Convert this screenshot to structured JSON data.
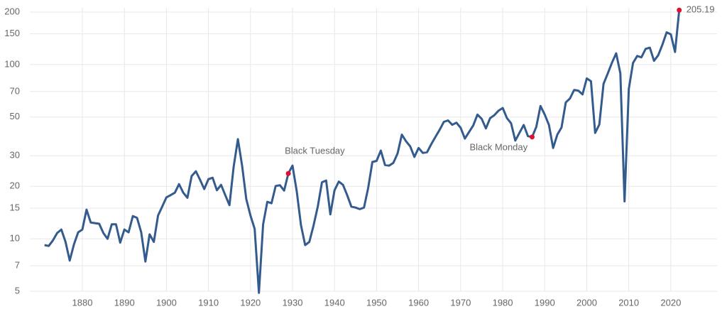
{
  "chart_data": {
    "type": "line",
    "log_scale": true,
    "grid": true,
    "color": "#345b8e",
    "marker_color": "#e0102f",
    "x": [
      1871,
      1872,
      1873,
      1874,
      1875,
      1876,
      1877,
      1878,
      1879,
      1880,
      1881,
      1882,
      1883,
      1884,
      1885,
      1886,
      1887,
      1888,
      1889,
      1890,
      1891,
      1892,
      1893,
      1894,
      1895,
      1896,
      1897,
      1898,
      1899,
      1900,
      1901,
      1902,
      1903,
      1904,
      1905,
      1906,
      1907,
      1908,
      1909,
      1910,
      1911,
      1912,
      1913,
      1914,
      1915,
      1916,
      1917,
      1918,
      1919,
      1920,
      1921,
      1922,
      1923,
      1924,
      1925,
      1926,
      1927,
      1928,
      1929,
      1930,
      1931,
      1932,
      1933,
      1934,
      1935,
      1936,
      1937,
      1938,
      1939,
      1940,
      1941,
      1942,
      1943,
      1944,
      1945,
      1946,
      1947,
      1948,
      1949,
      1950,
      1951,
      1952,
      1953,
      1954,
      1955,
      1956,
      1957,
      1958,
      1959,
      1960,
      1961,
      1962,
      1963,
      1964,
      1965,
      1966,
      1967,
      1968,
      1969,
      1970,
      1971,
      1972,
      1973,
      1974,
      1975,
      1976,
      1977,
      1978,
      1979,
      1980,
      1981,
      1982,
      1983,
      1984,
      1985,
      1986,
      1987,
      1988,
      1989,
      1990,
      1991,
      1992,
      1993,
      1994,
      1995,
      1996,
      1997,
      1998,
      1999,
      2000,
      2001,
      2002,
      2003,
      2004,
      2005,
      2006,
      2007,
      2008,
      2009,
      2010,
      2011,
      2012,
      2013,
      2014,
      2015,
      2016,
      2017,
      2018,
      2019,
      2020,
      2021,
      2022
    ],
    "values": [
      9.2,
      9.1,
      9.8,
      10.8,
      11.3,
      9.6,
      7.5,
      9.3,
      10.9,
      11.3,
      14.7,
      12.4,
      12.3,
      12.2,
      10.8,
      10.0,
      12.1,
      12.1,
      9.5,
      11.3,
      10.9,
      13.5,
      13.2,
      10.9,
      7.4,
      10.6,
      9.6,
      13.6,
      15.3,
      17.3,
      17.8,
      18.4,
      20.6,
      18.4,
      17.2,
      22.9,
      24.4,
      21.8,
      19.3,
      22.0,
      22.4,
      19.0,
      20.4,
      17.8,
      15.6,
      25.9,
      37.3,
      26.3,
      16.9,
      13.6,
      11.4,
      4.9,
      12.1,
      16.3,
      16.0,
      20.1,
      20.3,
      18.9,
      23.7,
      26.3,
      18.7,
      12.0,
      9.2,
      9.6,
      11.9,
      15.3,
      21.1,
      21.6,
      13.8,
      19.0,
      21.3,
      20.4,
      17.8,
      15.3,
      15.1,
      14.8,
      15.1,
      19.6,
      27.6,
      28.0,
      32.1,
      26.5,
      26.3,
      27.3,
      30.9,
      39.6,
      36.3,
      33.9,
      29.5,
      33.2,
      31.1,
      31.4,
      34.9,
      38.4,
      42.2,
      46.9,
      47.8,
      45.1,
      46.4,
      43.3,
      37.6,
      41.0,
      44.7,
      51.6,
      48.8,
      43.0,
      49.2,
      51.2,
      54.3,
      56.3,
      49.3,
      46.0,
      36.6,
      40.6,
      45.0,
      38.8,
      38.4,
      43.9,
      57.8,
      51.6,
      45.0,
      33.2,
      39.6,
      43.5,
      60.6,
      63.9,
      71.5,
      70.8,
      67.4,
      83.2,
      80.2,
      40.5,
      45.3,
      77.5,
      89.0,
      102.5,
      116,
      89.0,
      16.4,
      72.5,
      102,
      112,
      110,
      123,
      125,
      105,
      113,
      130,
      153,
      149,
      118,
      205.19
    ],
    "annotations": [
      {
        "x": 1929,
        "label": "Black Tuesday"
      },
      {
        "x": 1987,
        "label": "Black Monday"
      }
    ],
    "xlim": [
      1867.5,
      2031
    ],
    "ylim": [
      5,
      200
    ],
    "xticks": [
      1880,
      1890,
      1900,
      1910,
      1920,
      1930,
      1940,
      1950,
      1960,
      1970,
      1980,
      1990,
      2000,
      2010,
      2020
    ],
    "yticks": [
      5,
      7,
      10,
      15,
      20,
      30,
      50,
      70,
      100,
      150,
      200
    ]
  }
}
